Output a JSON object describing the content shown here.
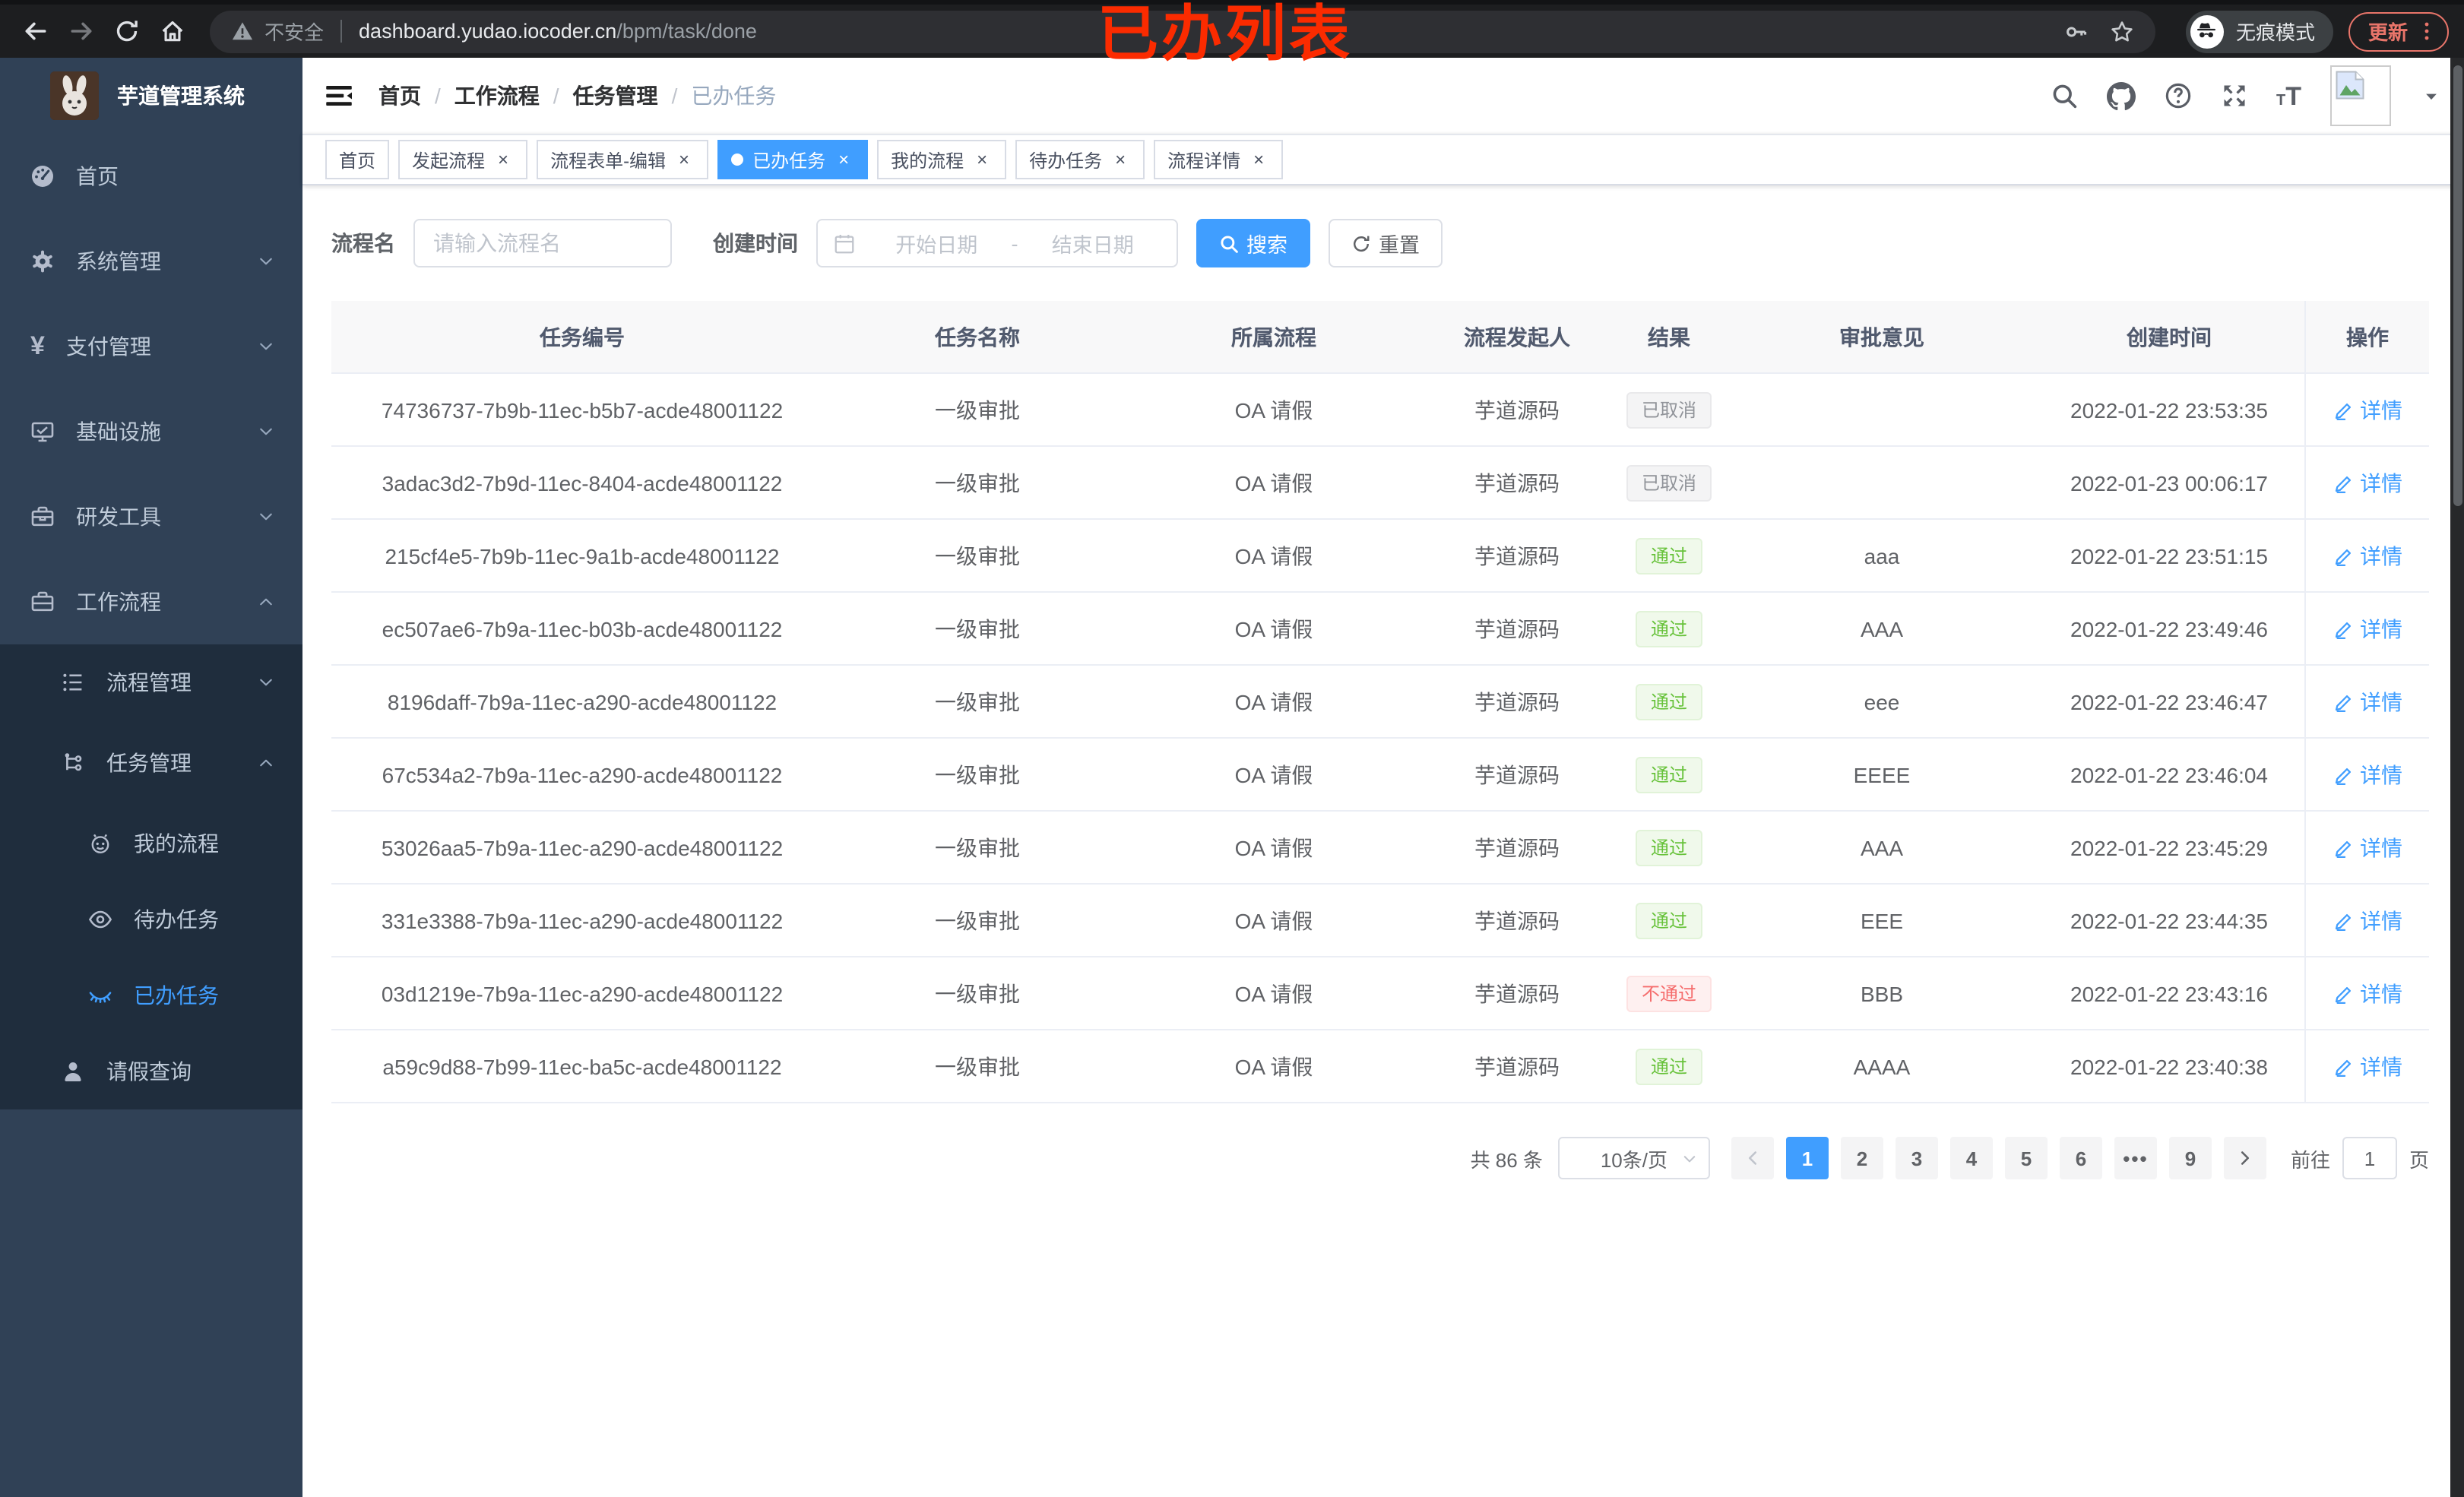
{
  "browser": {
    "security_label": "不安全",
    "url_host": "dashboard.yudao.iocoder.cn",
    "url_path": "/bpm/task/done",
    "incognito_label": "无痕模式",
    "update_label": "更新"
  },
  "annotation": {
    "text": "已办列表",
    "color": "#fb2b00"
  },
  "colors": {
    "accent": "#409EFF",
    "sidebar_bg": "#304156",
    "submenu_bg": "#1f2d3d",
    "success": "#67c23a",
    "danger": "#f56c6c",
    "info": "#909399"
  },
  "icons": {
    "back-icon": "←",
    "forward-icon": "→",
    "reload-icon": "⟳",
    "home-icon": "⌂",
    "warning-icon": "⚠",
    "key-icon": "⚿",
    "star-icon": "☆",
    "incognito-icon": "🕶",
    "more-vertical-icon": "⋮",
    "hamburger-fold-icon": "☰",
    "search-icon": "⌕",
    "github-icon": "octocat",
    "question-icon": "?",
    "fullscreen-icon": "⛶",
    "font-size-icon": "тT",
    "avatar-placeholder-icon": "🖼",
    "caret-down-icon": "▼",
    "chevron-down-icon": "⌄",
    "chevron-up-icon": "⌃",
    "calendar-icon": "📅",
    "refresh-icon": "↻",
    "edit-pencil-icon": "✎",
    "dashboard-icon": "◔",
    "gear-icon": "⚙",
    "yen-icon": "¥",
    "monitor-icon": "🖵",
    "toolbox-icon": "🧰",
    "briefcase-icon": "💼",
    "list-tree-icon": "☰",
    "flow-icon": "⎇",
    "robot-icon": "☺",
    "eye-icon": "👁",
    "eye-closed-icon": "ꓺ",
    "user-icon": "👤",
    "arrow-prev-icon": "‹",
    "arrow-next-icon": "›"
  },
  "sidebar": {
    "title": "芋道管理系统",
    "items": [
      {
        "name": "home",
        "label": "首页",
        "icon": "dashboard-icon"
      },
      {
        "name": "system",
        "label": "系统管理",
        "icon": "gear-icon",
        "arrow": "down"
      },
      {
        "name": "payment",
        "label": "支付管理",
        "icon": "yen-icon",
        "arrow": "down"
      },
      {
        "name": "infra",
        "label": "基础设施",
        "icon": "monitor-icon",
        "arrow": "down"
      },
      {
        "name": "devtools",
        "label": "研发工具",
        "icon": "toolbox-icon",
        "arrow": "down"
      },
      {
        "name": "workflow",
        "label": "工作流程",
        "icon": "briefcase-icon",
        "arrow": "up",
        "expanded": true,
        "children": [
          {
            "name": "process-mgmt",
            "label": "流程管理",
            "icon": "list-tree-icon",
            "arrow": "down"
          },
          {
            "name": "task-mgmt",
            "label": "任务管理",
            "icon": "flow-icon",
            "arrow": "up",
            "expanded": true,
            "children": [
              {
                "name": "my-process",
                "label": "我的流程",
                "icon": "robot-icon"
              },
              {
                "name": "todo-tasks",
                "label": "待办任务",
                "icon": "eye-icon"
              },
              {
                "name": "done-tasks",
                "label": "已办任务",
                "icon": "eye-closed-icon",
                "active": true
              }
            ]
          },
          {
            "name": "leave-query",
            "label": "请假查询",
            "icon": "user-icon"
          }
        ]
      }
    ]
  },
  "breadcrumb": [
    "首页",
    "工作流程",
    "任务管理",
    "已办任务"
  ],
  "tabs": [
    {
      "name": "home",
      "label": "首页",
      "closable": false,
      "active": false
    },
    {
      "name": "start-process",
      "label": "发起流程",
      "closable": true,
      "active": false
    },
    {
      "name": "form-edit",
      "label": "流程表单-编辑",
      "closable": true,
      "active": false
    },
    {
      "name": "done-tasks",
      "label": "已办任务",
      "closable": true,
      "active": true
    },
    {
      "name": "my-process",
      "label": "我的流程",
      "closable": true,
      "active": false
    },
    {
      "name": "todo-tasks",
      "label": "待办任务",
      "closable": true,
      "active": false
    },
    {
      "name": "process-detail",
      "label": "流程详情",
      "closable": true,
      "active": false
    }
  ],
  "filters": {
    "process_name_label": "流程名",
    "process_name_placeholder": "请输入流程名",
    "create_time_label": "创建时间",
    "start_placeholder": "开始日期",
    "range_separator": "-",
    "end_placeholder": "结束日期",
    "search_label": "搜索",
    "reset_label": "重置"
  },
  "table": {
    "columns": [
      "任务编号",
      "任务名称",
      "所属流程",
      "流程发起人",
      "结果",
      "审批意见",
      "创建时间",
      "操作"
    ],
    "detail_label": "详情",
    "rows": [
      {
        "id": "74736737-7b9b-11ec-b5b7-acde48001122",
        "name": "一级审批",
        "process": "OA 请假",
        "starter": "芋道源码",
        "result": "已取消",
        "result_type": "info",
        "opinion": "",
        "created": "2022-01-22 23:53:35"
      },
      {
        "id": "3adac3d2-7b9d-11ec-8404-acde48001122",
        "name": "一级审批",
        "process": "OA 请假",
        "starter": "芋道源码",
        "result": "已取消",
        "result_type": "info",
        "opinion": "",
        "created": "2022-01-23 00:06:17"
      },
      {
        "id": "215cf4e5-7b9b-11ec-9a1b-acde48001122",
        "name": "一级审批",
        "process": "OA 请假",
        "starter": "芋道源码",
        "result": "通过",
        "result_type": "success",
        "opinion": "aaa",
        "created": "2022-01-22 23:51:15"
      },
      {
        "id": "ec507ae6-7b9a-11ec-b03b-acde48001122",
        "name": "一级审批",
        "process": "OA 请假",
        "starter": "芋道源码",
        "result": "通过",
        "result_type": "success",
        "opinion": "AAA",
        "created": "2022-01-22 23:49:46"
      },
      {
        "id": "8196daff-7b9a-11ec-a290-acde48001122",
        "name": "一级审批",
        "process": "OA 请假",
        "starter": "芋道源码",
        "result": "通过",
        "result_type": "success",
        "opinion": "eee",
        "created": "2022-01-22 23:46:47"
      },
      {
        "id": "67c534a2-7b9a-11ec-a290-acde48001122",
        "name": "一级审批",
        "process": "OA 请假",
        "starter": "芋道源码",
        "result": "通过",
        "result_type": "success",
        "opinion": "EEEE",
        "created": "2022-01-22 23:46:04"
      },
      {
        "id": "53026aa5-7b9a-11ec-a290-acde48001122",
        "name": "一级审批",
        "process": "OA 请假",
        "starter": "芋道源码",
        "result": "通过",
        "result_type": "success",
        "opinion": "AAA",
        "created": "2022-01-22 23:45:29"
      },
      {
        "id": "331e3388-7b9a-11ec-a290-acde48001122",
        "name": "一级审批",
        "process": "OA 请假",
        "starter": "芋道源码",
        "result": "通过",
        "result_type": "success",
        "opinion": "EEE",
        "created": "2022-01-22 23:44:35"
      },
      {
        "id": "03d1219e-7b9a-11ec-a290-acde48001122",
        "name": "一级审批",
        "process": "OA 请假",
        "starter": "芋道源码",
        "result": "不通过",
        "result_type": "danger",
        "opinion": "BBB",
        "created": "2022-01-22 23:43:16"
      },
      {
        "id": "a59c9d88-7b99-11ec-ba5c-acde48001122",
        "name": "一级审批",
        "process": "OA 请假",
        "starter": "芋道源码",
        "result": "通过",
        "result_type": "success",
        "opinion": "AAAA",
        "created": "2022-01-22 23:40:38"
      }
    ]
  },
  "pagination": {
    "total_label": "共 86 条",
    "page_size_label": "10条/页",
    "pages": [
      "1",
      "2",
      "3",
      "4",
      "5",
      "6",
      "•••",
      "9"
    ],
    "active_page": "1",
    "goto_label": "前往",
    "goto_value": "1",
    "page_unit_label": "页"
  }
}
